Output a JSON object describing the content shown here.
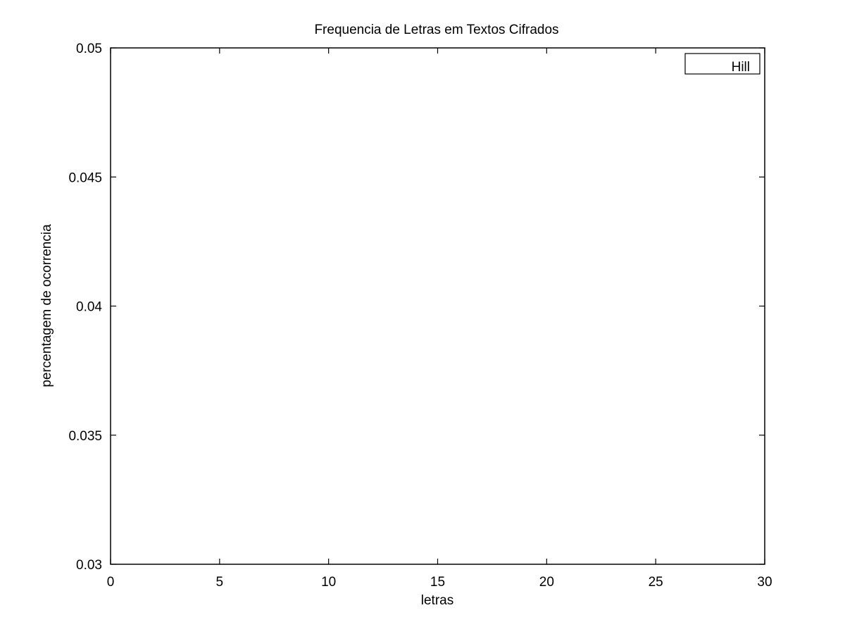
{
  "chart_data": {
    "type": "line",
    "title": "Frequencia de Letras em Textos Cifrados",
    "xlabel": "letras",
    "ylabel": "percentagem de ocorrencia",
    "xlim": [
      0,
      30
    ],
    "ylim": [
      0.03,
      0.05
    ],
    "x_ticks": [
      {
        "value": 0,
        "label": "0"
      },
      {
        "value": 5,
        "label": "5"
      },
      {
        "value": 10,
        "label": "10"
      },
      {
        "value": 15,
        "label": "15"
      },
      {
        "value": 20,
        "label": "20"
      },
      {
        "value": 25,
        "label": "25"
      },
      {
        "value": 30,
        "label": "30"
      }
    ],
    "y_ticks": [
      {
        "value": 0.03,
        "label": "0.03"
      },
      {
        "value": 0.035,
        "label": "0.035"
      },
      {
        "value": 0.04,
        "label": "0.04"
      },
      {
        "value": 0.045,
        "label": "0.045"
      },
      {
        "value": 0.05,
        "label": "0.05"
      }
    ],
    "grid": false,
    "legend_position": "top-right",
    "series": [
      {
        "name": "Hill",
        "x": [],
        "y": [],
        "color": "#000000"
      }
    ]
  }
}
